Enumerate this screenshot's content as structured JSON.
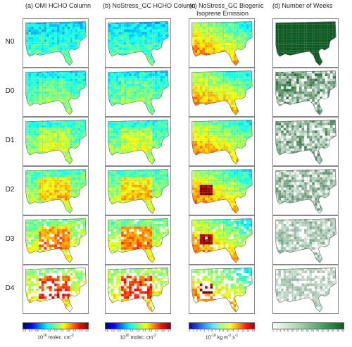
{
  "columns": [
    {
      "title": "(a) OMI HCHO Column",
      "scheme": "jet"
    },
    {
      "title": "(b) NoStress_GC HCHO Column",
      "scheme": "jet"
    },
    {
      "title_line1": "(c) NoStress_GC Biogenic",
      "title_line2": "Isoprene Emission",
      "scheme": "iso"
    },
    {
      "title": "(d) Number of Weeks",
      "scheme": "green"
    }
  ],
  "rows": [
    "N0",
    "D0",
    "D1",
    "D2",
    "D3",
    "D4"
  ],
  "colorbars": {
    "a": {
      "unit_base": "10",
      "unit_exp": "16",
      "unit_rest": " molec. cm",
      "unit_exp2": "-2",
      "ticks": [
        "0.0",
        "0.4",
        "0.8",
        "1.2",
        "1.6",
        "2.0",
        "2.4",
        "2.8",
        "3.2",
        "3.6",
        "4.0"
      ]
    },
    "b": {
      "unit_base": "10",
      "unit_exp": "16",
      "unit_rest": " molec. cm",
      "unit_exp2": "-2",
      "ticks": [
        "0.0",
        "0.4",
        "0.8",
        "1.2",
        "1.6",
        "2.0",
        "2.4",
        "2.8",
        "3.2",
        "3.6",
        "4.0"
      ]
    },
    "c": {
      "unit_base": "10",
      "unit_exp": "-10",
      "unit_rest": " kg m",
      "unit_exp2": "-2",
      "unit_rest2": " s",
      "unit_exp3": "-1",
      "ticks": [
        "0",
        "1",
        "2",
        "3",
        "4",
        "5",
        "6",
        "7",
        "8",
        "9",
        "10",
        "11",
        "12",
        "13",
        "14",
        "15"
      ]
    },
    "d": {
      "ticks": [
        "1",
        "2",
        "4",
        "6",
        "8",
        "10",
        "12",
        "14",
        "16",
        "18",
        "20",
        "22",
        "24",
        "26",
        "28",
        "30"
      ]
    }
  },
  "colors": {
    "map_bg": "#ffffff",
    "border": "#555555",
    "n0_green": "#0d5a22"
  }
}
